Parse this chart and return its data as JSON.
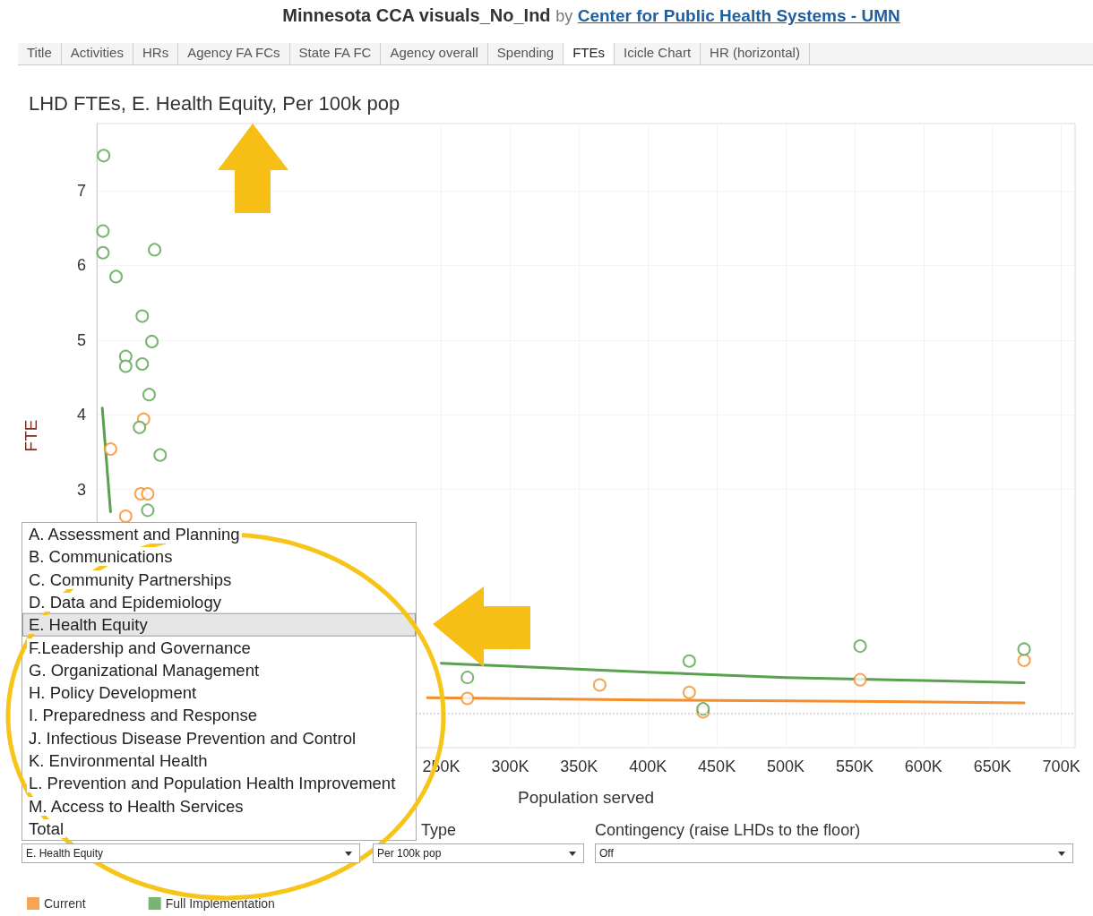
{
  "chart_data": {
    "type": "scatter",
    "title": "LHD FTEs, E. Health Equity, Per 100k pop",
    "xlabel": "Population served",
    "ylabel": "FTE",
    "xlim": [
      0,
      710000
    ],
    "xticks": [
      {
        "value": 250000,
        "label": "250K"
      },
      {
        "value": 300000,
        "label": "300K"
      },
      {
        "value": 350000,
        "label": "350K"
      },
      {
        "value": 400000,
        "label": "400K"
      },
      {
        "value": 450000,
        "label": "450K"
      },
      {
        "value": 500000,
        "label": "500K"
      },
      {
        "value": 550000,
        "label": "550K"
      },
      {
        "value": 600000,
        "label": "600K"
      },
      {
        "value": 650000,
        "label": "650K"
      },
      {
        "value": 700000,
        "label": "700K"
      }
    ],
    "ylim": [
      -0.46,
      7.9
    ],
    "yticks": [
      3,
      4,
      5,
      6,
      7
    ],
    "grid": true,
    "legend": "bottom left",
    "marker": "circle",
    "ref_lines": [
      {
        "axis": "y",
        "value": 0,
        "line_style": "dotted",
        "color": "#d9d9d9"
      }
    ],
    "series": [
      {
        "name": "Current",
        "color": "#f28e2b",
        "x": [
          10000,
          34000,
          32000,
          37000,
          21000,
          269000,
          365000,
          430000,
          440000,
          554000,
          673000
        ],
        "values": [
          3.54,
          3.94,
          2.94,
          2.94,
          2.64,
          0.2,
          0.38,
          0.28,
          0.02,
          0.45,
          0.71
        ]
      },
      {
        "name": "Full Implementation",
        "color": "#59a14f",
        "x": [
          5000,
          4500,
          4500,
          42000,
          14000,
          33000,
          40000,
          21000,
          21000,
          33000,
          38000,
          31000,
          46000,
          37000,
          44000,
          269000,
          430000,
          440000,
          554000,
          673000
        ],
        "values": [
          7.47,
          6.46,
          6.17,
          6.21,
          5.85,
          5.32,
          4.98,
          4.78,
          4.65,
          4.68,
          4.27,
          3.83,
          3.46,
          2.72,
          null,
          0.48,
          0.7,
          0.06,
          0.9,
          0.86
        ]
      },
      {
        "type": "line",
        "color": "#f28e2b",
        "marker": "none",
        "x": [
          240000,
          400000,
          550000,
          673000
        ],
        "values": [
          0.21,
          0.18,
          0.16,
          0.14
        ]
      },
      {
        "type": "line",
        "color": "#59a14f",
        "marker": "none",
        "x": [
          4000,
          10000,
          20000,
          50000,
          100000,
          150000,
          200000,
          250000,
          300000,
          400000,
          500000,
          600000,
          673000
        ],
        "values": [
          4.09,
          2.7,
          null,
          null,
          null,
          null,
          null,
          0.67,
          0.63,
          0.55,
          0.48,
          0.44,
          0.41
        ]
      }
    ],
    "annotations": [
      "Minnesota CCA visuals_No_Ind",
      "by",
      "Center for Public Health Systems - UMN",
      "Title",
      "Activities",
      "HRs",
      "Agency FA FCs",
      "State FA FC",
      "Agency overall",
      "Spending",
      "FTEs",
      "Icicle Chart",
      "HR (horizontal)",
      "A. Assessment and Planning",
      "B. Communications",
      "C. Community Partnerships",
      "D. Data and Epidemiology",
      "E. Health Equity",
      "F.Leadership and Governance",
      "G. Organizational Management",
      "H. Policy Development",
      "I. Preparedness and Response",
      "J. Infectious Disease Prevention and Control",
      "K. Environmental Health",
      "L. Prevention and Population Health Improvement",
      "M. Access to Health Services",
      "Total",
      "Type",
      "Contingency (raise LHDs to the floor)",
      "E. Health Equity",
      "Per 100k pop",
      "Off"
    ]
  }
}
